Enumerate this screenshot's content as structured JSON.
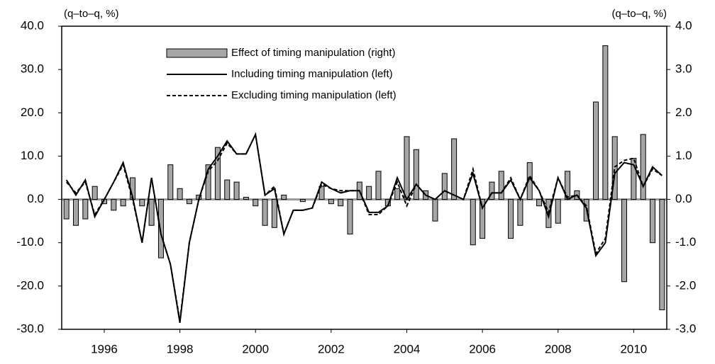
{
  "chart_data": {
    "type": "combo",
    "y_unit_label": "(q–to–q, %)",
    "y2_unit_label": "(q–to–q, %)",
    "x": [
      1995,
      1995.25,
      1995.5,
      1995.75,
      1996,
      1996.25,
      1996.5,
      1996.75,
      1997,
      1997.25,
      1997.5,
      1997.75,
      1998,
      1998.25,
      1998.5,
      1998.75,
      1999,
      1999.25,
      1999.5,
      1999.75,
      2000,
      2000.25,
      2000.5,
      2000.75,
      2001,
      2001.25,
      2001.5,
      2001.75,
      2002,
      2002.25,
      2002.5,
      2002.75,
      2003,
      2003.25,
      2003.5,
      2003.75,
      2004,
      2004.25,
      2004.5,
      2004.75,
      2005,
      2005.25,
      2005.5,
      2005.75,
      2006,
      2006.25,
      2006.5,
      2006.75,
      2007,
      2007.25,
      2007.5,
      2007.75,
      2008,
      2008.25,
      2008.5,
      2008.75,
      2009,
      2009.25,
      2009.5,
      2009.75,
      2010,
      2010.25,
      2010.5,
      2010.75
    ],
    "xlim": [
      1994.875,
      2010.875
    ],
    "xticks": [
      1996,
      1998,
      2000,
      2002,
      2004,
      2006,
      2008,
      2010
    ],
    "ylim": [
      -30,
      40
    ],
    "yticks": [
      {
        "value": -30,
        "label": "-30.0"
      },
      {
        "value": -20,
        "label": "-20.0"
      },
      {
        "value": -10,
        "label": "-10.0"
      },
      {
        "value": 0,
        "label": "0.0"
      },
      {
        "value": 10,
        "label": "10.0"
      },
      {
        "value": 20,
        "label": "20.0"
      },
      {
        "value": 30,
        "label": "30.0"
      },
      {
        "value": 40,
        "label": "40.0"
      }
    ],
    "y2lim": [
      -3,
      4
    ],
    "y2ticks": [
      {
        "value": -3,
        "label": "-3.0"
      },
      {
        "value": -2,
        "label": "-2.0"
      },
      {
        "value": -1,
        "label": "-1.0"
      },
      {
        "value": 0,
        "label": "0.0"
      },
      {
        "value": 1,
        "label": "1.0"
      },
      {
        "value": 2,
        "label": "2.0"
      },
      {
        "value": 3,
        "label": "3.0"
      },
      {
        "value": 4,
        "label": "4.0"
      }
    ],
    "series": [
      {
        "name": "Effect of timing manipulation (right)",
        "type": "bar",
        "axis": "y2",
        "color": "#a6a6a6",
        "values": [
          -0.45,
          -0.6,
          -0.45,
          0.3,
          -0.1,
          -0.25,
          -0.15,
          0.5,
          -0.15,
          -0.6,
          -1.35,
          0.8,
          0.25,
          -0.1,
          0.1,
          0.8,
          1.2,
          0.45,
          0.4,
          0.05,
          -0.15,
          -0.6,
          -0.65,
          0.1,
          0,
          -0.05,
          0,
          0.3,
          -0.1,
          -0.15,
          -0.8,
          0.4,
          0.3,
          0.65,
          -0.15,
          0.25,
          1.45,
          1.15,
          0.2,
          -0.5,
          0.6,
          1.4,
          0,
          -1.05,
          -0.9,
          0.4,
          0.65,
          -0.9,
          -0.6,
          0.85,
          -0.15,
          -0.65,
          -0.55,
          0.65,
          0.2,
          -0.5,
          2.25,
          3.55,
          1.45,
          -1.9,
          0.95,
          1.5,
          -1.0,
          -2.55
        ]
      },
      {
        "name": "Including timing manipulation (left)",
        "type": "line",
        "style": "solid",
        "color": "#000000",
        "values": [
          4.5,
          1,
          4.5,
          -4,
          0,
          4,
          8.5,
          0.5,
          -10,
          5,
          -8,
          -15,
          -28.5,
          -10,
          0,
          7,
          10,
          13.5,
          10.5,
          10.5,
          15,
          1,
          2.5,
          -8,
          -2.5,
          -2.5,
          -2,
          4,
          2.5,
          1.5,
          2,
          2,
          -3,
          -3,
          -1.5,
          5,
          0,
          3.5,
          1,
          0,
          2,
          1,
          0,
          6,
          -2,
          1.5,
          1.5,
          4.5,
          0,
          5,
          2,
          -4,
          5,
          0,
          1,
          -2,
          -13,
          -10,
          6,
          8.5,
          8,
          3,
          7.5,
          5.5
        ]
      },
      {
        "name": "Excluding timing manipulation (left)",
        "type": "line",
        "style": "dashed",
        "color": "#000000",
        "values": [
          4,
          1.5,
          4,
          -3.5,
          0,
          4,
          8,
          0,
          -10,
          5,
          -8,
          -15,
          -28,
          -10,
          0,
          6.5,
          9,
          13,
          10.5,
          10.5,
          15,
          1,
          3,
          -8,
          -2.5,
          -2.5,
          -2,
          3.5,
          2.5,
          2,
          2,
          2,
          -3.5,
          -3.5,
          -1.5,
          4,
          -1.5,
          3.5,
          1,
          0,
          2,
          1,
          0,
          7,
          -2,
          1.5,
          1.5,
          5,
          0,
          5.5,
          2,
          -3,
          5,
          0.5,
          1,
          -1.5,
          -12.5,
          -9,
          7.5,
          9,
          9.5,
          3,
          7,
          5.5
        ]
      }
    ]
  }
}
